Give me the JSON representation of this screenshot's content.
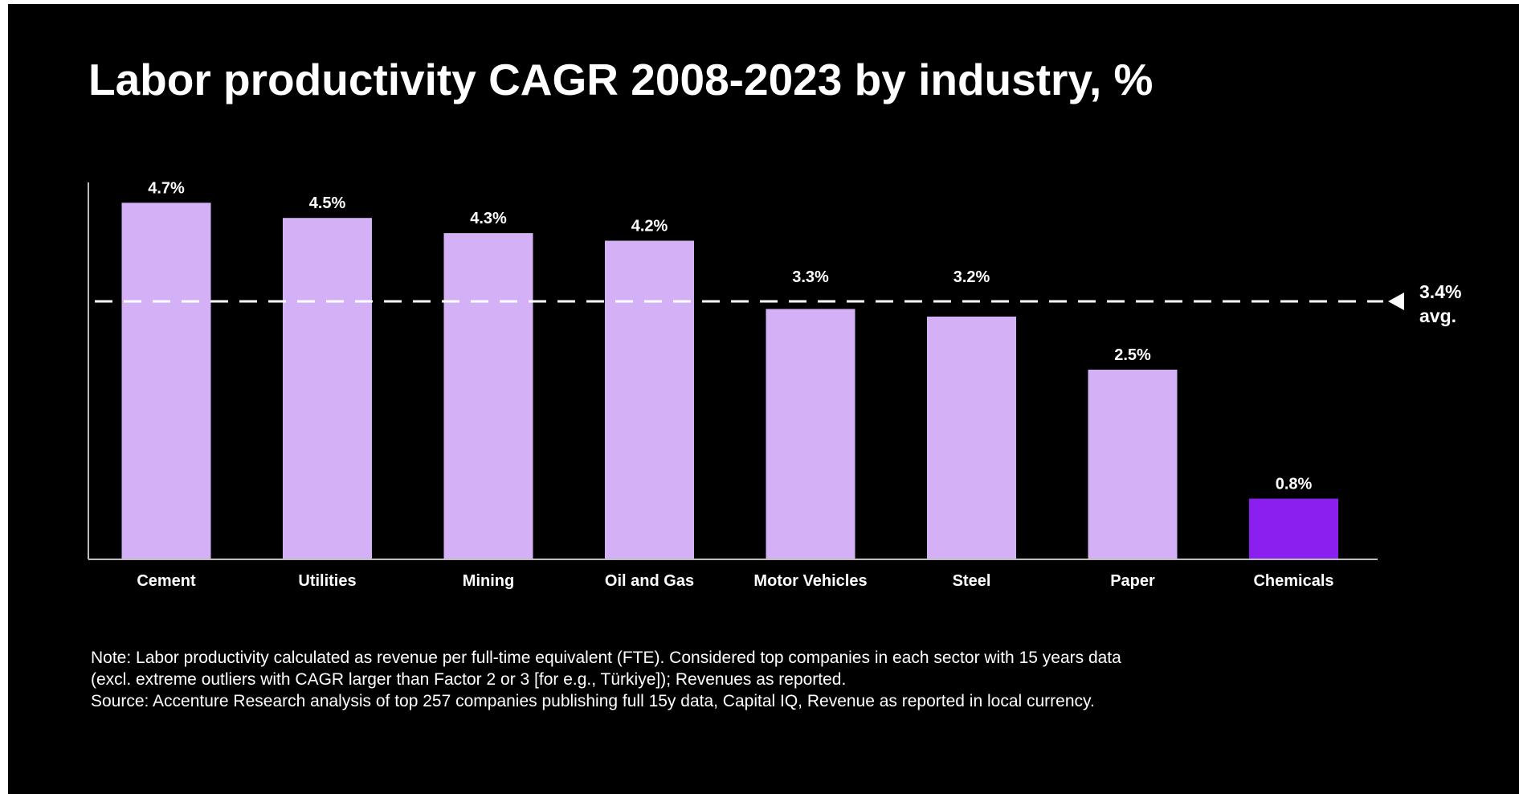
{
  "title": "Labor productivity CAGR 2008-2023 by industry, %",
  "notes": [
    "Note: Labor productivity calculated as revenue per full-time equivalent (FTE). Considered top companies in each sector with 15 years data",
    "(excl. extreme outliers with CAGR larger than Factor 2 or 3 [for e.g., Türkiye]); Revenues as reported.",
    "Source: Accenture Research analysis of top 257 companies publishing full 15y data, Capital IQ, Revenue as reported in local currency."
  ],
  "colors": {
    "background": "#000000",
    "bar": "#d4b1f7",
    "bar_highlight": "#8a1ff0",
    "text": "#ffffff"
  },
  "chart_data": {
    "type": "bar",
    "categories": [
      "Cement",
      "Utilities",
      "Mining",
      "Oil and Gas",
      "Motor Vehicles",
      "Steel",
      "Paper",
      "Chemicals"
    ],
    "values": [
      4.7,
      4.5,
      4.3,
      4.2,
      3.3,
      3.2,
      2.5,
      0.8
    ],
    "data_labels": [
      "4.7%",
      "4.5%",
      "4.3%",
      "4.2%",
      "3.3%",
      "3.2%",
      "2.5%",
      "0.8%"
    ],
    "highlight_category": "Chemicals",
    "ylim": [
      0,
      5
    ],
    "grid": false,
    "average": {
      "value": 3.4,
      "label_lines": [
        "3.4%",
        "avg."
      ]
    }
  }
}
